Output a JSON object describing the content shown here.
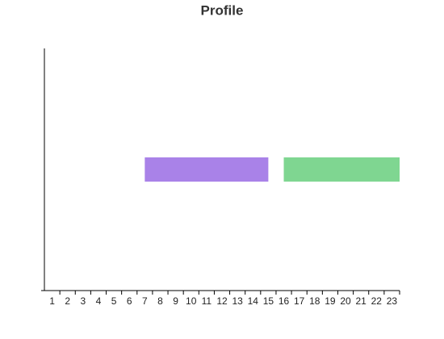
{
  "chart_data": {
    "type": "timeline",
    "title": "Profile",
    "ranges": [
      {
        "start": 7,
        "end": 15,
        "color": "#a982e8"
      },
      {
        "start": 16,
        "end": 23.5,
        "color": "#7fd691"
      }
    ],
    "xlim": [
      0.5,
      23.5
    ],
    "xticks": [
      1,
      2,
      3,
      4,
      5,
      6,
      7,
      8,
      9,
      10,
      11,
      12,
      13,
      14,
      15,
      16,
      17,
      18,
      19,
      20,
      21,
      22,
      23
    ]
  }
}
